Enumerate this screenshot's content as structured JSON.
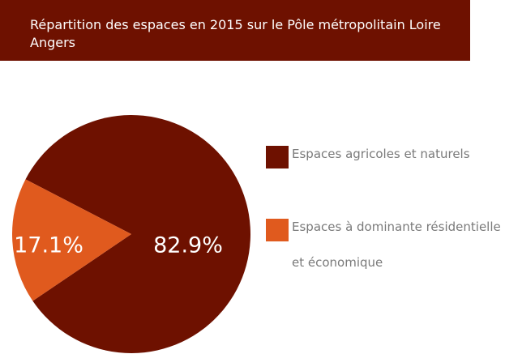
{
  "chart_data": {
    "type": "pie",
    "title": "Répartition des espaces en 2015 sur le Pôle métropolitain Loire Angers",
    "categories": [
      "Espaces agricoles et naturels",
      "Espaces à dominante résidentielle et économique"
    ],
    "values": [
      82.9,
      17.1
    ],
    "value_labels": [
      "82.9%",
      "17.1%"
    ],
    "colors": [
      "#6e1100",
      "#e05a1e"
    ],
    "legend": "right"
  }
}
